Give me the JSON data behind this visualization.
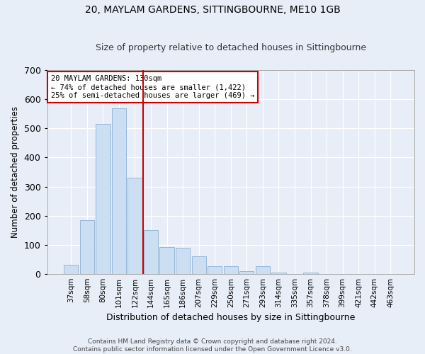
{
  "title": "20, MAYLAM GARDENS, SITTINGBOURNE, ME10 1GB",
  "subtitle": "Size of property relative to detached houses in Sittingbourne",
  "xlabel": "Distribution of detached houses by size in Sittingbourne",
  "ylabel": "Number of detached properties",
  "footer_line1": "Contains HM Land Registry data © Crown copyright and database right 2024.",
  "footer_line2": "Contains public sector information licensed under the Open Government Licence v3.0.",
  "categories": [
    "37sqm",
    "58sqm",
    "80sqm",
    "101sqm",
    "122sqm",
    "144sqm",
    "165sqm",
    "186sqm",
    "207sqm",
    "229sqm",
    "250sqm",
    "271sqm",
    "293sqm",
    "314sqm",
    "335sqm",
    "357sqm",
    "378sqm",
    "399sqm",
    "421sqm",
    "442sqm",
    "463sqm"
  ],
  "values": [
    30,
    185,
    515,
    570,
    330,
    150,
    92,
    90,
    60,
    25,
    25,
    10,
    25,
    5,
    0,
    5,
    0,
    0,
    0,
    0,
    0
  ],
  "bar_color": "#ccdff2",
  "bar_edge_color": "#93b8d8",
  "background_color": "#e8eef8",
  "grid_color": "#ffffff",
  "vline_color": "#cc0000",
  "vline_x_index": 4.5,
  "annotation_box_text_line1": "20 MAYLAM GARDENS: 130sqm",
  "annotation_box_text_line2": "← 74% of detached houses are smaller (1,422)",
  "annotation_box_text_line3": "25% of semi-detached houses are larger (469) →",
  "annotation_box_color": "#cc0000",
  "ylim": [
    0,
    700
  ],
  "yticks": [
    0,
    100,
    200,
    300,
    400,
    500,
    600,
    700
  ],
  "title_fontsize": 10,
  "subtitle_fontsize": 9
}
